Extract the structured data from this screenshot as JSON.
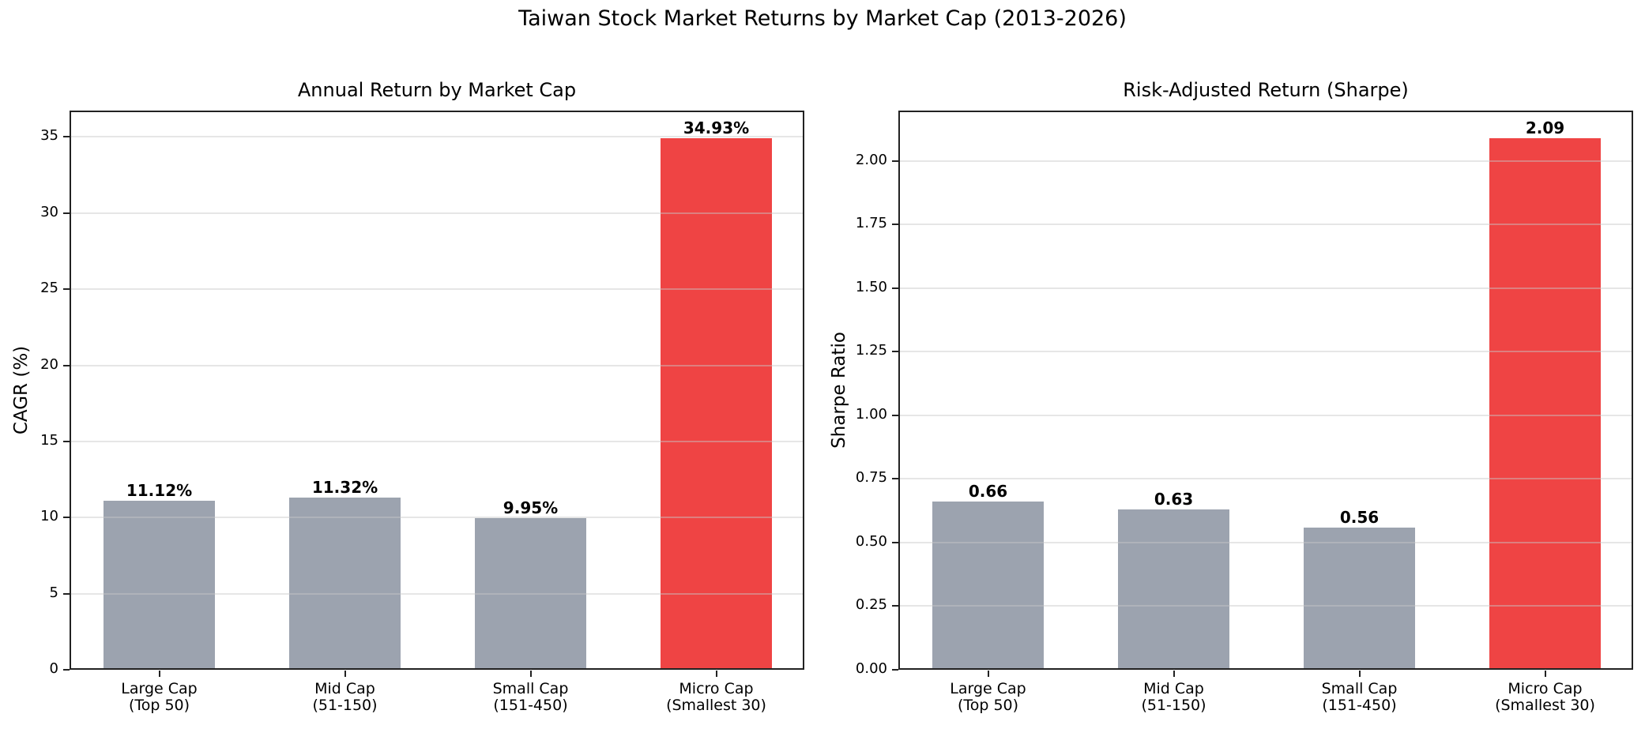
{
  "figure": {
    "suptitle": "Taiwan Stock Market Returns by Market Cap (2013-2026)"
  },
  "colors": {
    "default_bar": "#9ca3af",
    "highlight_bar": "#ef4444",
    "grid": "#e5e5e5",
    "axis": "#222222"
  },
  "chart_data": [
    {
      "type": "bar",
      "title": "Annual Return by Market Cap",
      "xlabel": "",
      "ylabel": "CAGR (%)",
      "categories": [
        "Large Cap\n(Top 50)",
        "Mid Cap\n(51-150)",
        "Small Cap\n(151-450)",
        "Micro Cap\n(Smallest 30)"
      ],
      "values": [
        11.12,
        11.32,
        9.95,
        34.93
      ],
      "value_labels": [
        "11.12%",
        "11.32%",
        "9.95%",
        "34.93%"
      ],
      "bar_colors": [
        "#9ca3af",
        "#9ca3af",
        "#9ca3af",
        "#ef4444"
      ],
      "ylim": [
        0,
        36.68
      ],
      "yticks": [
        0,
        5,
        10,
        15,
        20,
        25,
        30,
        35
      ],
      "ytick_labels": [
        "0",
        "5",
        "10",
        "15",
        "20",
        "25",
        "30",
        "35"
      ],
      "grid": "y",
      "legend": null
    },
    {
      "type": "bar",
      "title": "Risk-Adjusted Return (Sharpe)",
      "xlabel": "",
      "ylabel": "Sharpe Ratio",
      "categories": [
        "Large Cap\n(Top 50)",
        "Mid Cap\n(51-150)",
        "Small Cap\n(151-450)",
        "Micro Cap\n(Smallest 30)"
      ],
      "values": [
        0.66,
        0.63,
        0.56,
        2.09
      ],
      "value_labels": [
        "0.66",
        "0.63",
        "0.56",
        "2.09"
      ],
      "bar_colors": [
        "#9ca3af",
        "#9ca3af",
        "#9ca3af",
        "#ef4444"
      ],
      "ylim": [
        0,
        2.195
      ],
      "yticks": [
        0,
        0.25,
        0.5,
        0.75,
        1.0,
        1.25,
        1.5,
        1.75,
        2.0
      ],
      "ytick_labels": [
        "0.00",
        "0.25",
        "0.50",
        "0.75",
        "1.00",
        "1.25",
        "1.50",
        "1.75",
        "2.00"
      ],
      "grid": "y",
      "legend": null
    }
  ]
}
